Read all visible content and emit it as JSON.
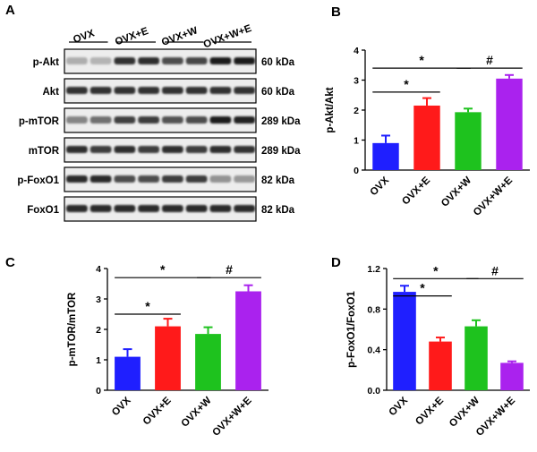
{
  "blot": {
    "panel_label": "A",
    "groups": [
      "OVX",
      "OVX+E",
      "OVX+W",
      "OVX+W+E"
    ],
    "rows": [
      {
        "protein": "p-Akt",
        "mw": "60 kDa",
        "intensity": [
          0.25,
          0.22,
          0.85,
          0.88,
          0.72,
          0.75,
          0.95,
          0.95
        ]
      },
      {
        "protein": "Akt",
        "mw": "60 kDa",
        "intensity": [
          0.85,
          0.85,
          0.85,
          0.85,
          0.85,
          0.85,
          0.85,
          0.85
        ]
      },
      {
        "protein": "p-mTOR",
        "mw": "289 kDa",
        "intensity": [
          0.45,
          0.55,
          0.78,
          0.8,
          0.7,
          0.72,
          0.95,
          0.92
        ]
      },
      {
        "protein": "mTOR",
        "mw": "289 kDa",
        "intensity": [
          0.88,
          0.8,
          0.88,
          0.8,
          0.88,
          0.8,
          0.88,
          0.85
        ]
      },
      {
        "protein": "p-FoxO1",
        "mw": "82 kDa",
        "intensity": [
          0.9,
          0.9,
          0.72,
          0.72,
          0.8,
          0.8,
          0.38,
          0.35
        ]
      },
      {
        "protein": "FoxO1",
        "mw": "82 kDa",
        "intensity": [
          0.9,
          0.9,
          0.9,
          0.9,
          0.9,
          0.9,
          0.9,
          0.9
        ]
      }
    ]
  },
  "chart_data": [
    {
      "panel_label": "B",
      "type": "bar",
      "categories": [
        "OVX",
        "OVX+E",
        "OVX+W",
        "OVX+W+E"
      ],
      "values": [
        0.9,
        2.15,
        1.93,
        3.05
      ],
      "errors": [
        0.25,
        0.25,
        0.12,
        0.12
      ],
      "colors": [
        "#1f1fff",
        "#ff1a1a",
        "#1ec21e",
        "#aa22ee"
      ],
      "ylabel": "p-Akt/Akt",
      "ylim": [
        0,
        4
      ],
      "yticks": [
        "0",
        "1",
        "2",
        "3",
        "4"
      ],
      "sig": [
        {
          "from": 0,
          "to": 1,
          "symbol": "*",
          "level": 2.6
        },
        {
          "from": 0,
          "to": 2,
          "symbol": "*",
          "level": 3.4
        },
        {
          "from": 2,
          "to": 3,
          "symbol": "#",
          "level": 3.4
        }
      ]
    },
    {
      "panel_label": "C",
      "type": "bar",
      "categories": [
        "OVX",
        "OVX+E",
        "OVX+W",
        "OVX+W+E"
      ],
      "values": [
        1.1,
        2.1,
        1.85,
        3.25
      ],
      "errors": [
        0.25,
        0.25,
        0.22,
        0.2
      ],
      "colors": [
        "#1f1fff",
        "#ff1a1a",
        "#1ec21e",
        "#aa22ee"
      ],
      "ylabel": "p-mTOR/mTOR",
      "ylim": [
        0,
        4
      ],
      "yticks": [
        "0",
        "1",
        "2",
        "3",
        "4"
      ],
      "sig": [
        {
          "from": 0,
          "to": 1,
          "symbol": "*",
          "level": 2.5
        },
        {
          "from": 0,
          "to": 2,
          "symbol": "*",
          "level": 3.7
        },
        {
          "from": 2,
          "to": 3,
          "symbol": "#",
          "level": 3.7
        }
      ]
    },
    {
      "panel_label": "D",
      "type": "bar",
      "categories": [
        "OVX",
        "OVX+E",
        "OVX+W",
        "OVX+W+E"
      ],
      "values": [
        0.97,
        0.48,
        0.63,
        0.27
      ],
      "errors": [
        0.06,
        0.04,
        0.06,
        0.015
      ],
      "colors": [
        "#1f1fff",
        "#ff1a1a",
        "#1ec21e",
        "#aa22ee"
      ],
      "ylabel": "p-FoxO1/FoxO1",
      "ylim": [
        0,
        1.2
      ],
      "yticks": [
        "0.0",
        "0.4",
        "0.8",
        "1.2"
      ],
      "sig": [
        {
          "from": 0,
          "to": 1,
          "symbol": "*",
          "level": 0.93
        },
        {
          "from": 0,
          "to": 2,
          "symbol": "*",
          "level": 1.1
        },
        {
          "from": 2,
          "to": 3,
          "symbol": "#",
          "level": 1.1
        }
      ]
    }
  ]
}
